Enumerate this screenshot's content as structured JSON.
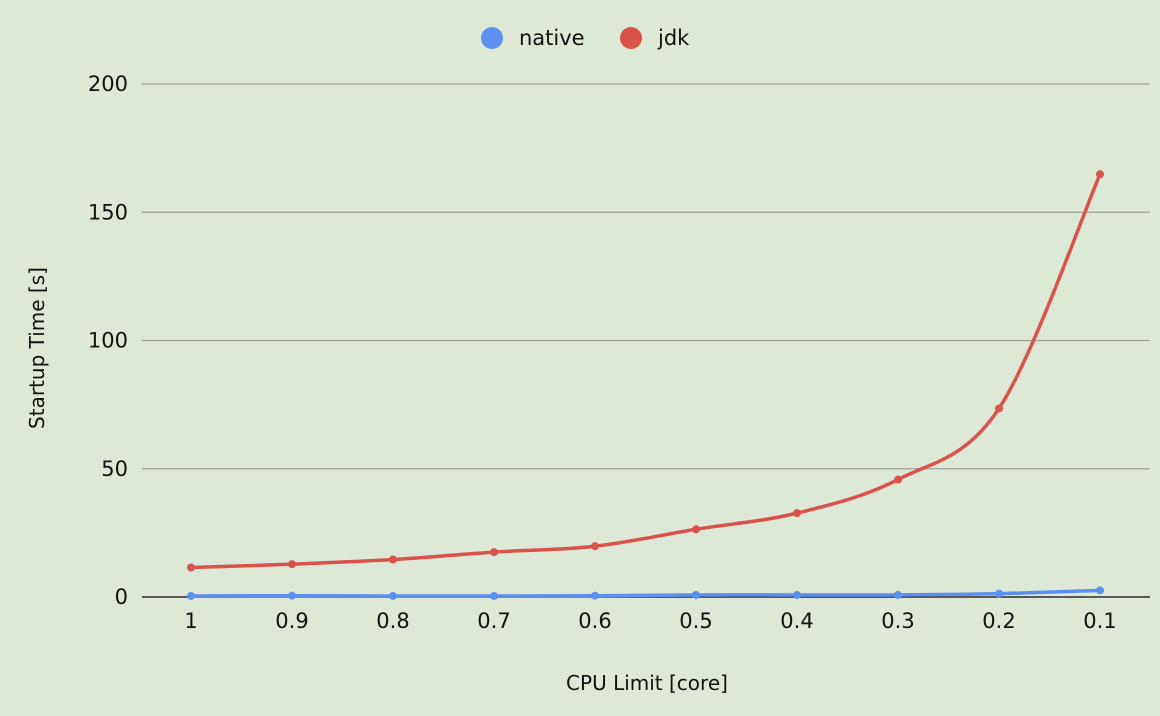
{
  "chart_data": {
    "type": "line",
    "categories": [
      "1",
      "0.9",
      "0.8",
      "0.7",
      "0.6",
      "0.5",
      "0.4",
      "0.3",
      "0.2",
      "0.1"
    ],
    "series": [
      {
        "name": "native",
        "color": "#5b8ff0",
        "values": [
          0.4,
          0.5,
          0.4,
          0.4,
          0.5,
          0.8,
          0.8,
          0.8,
          1.3,
          2.6
        ]
      },
      {
        "name": "jdk",
        "color": "#d9534a",
        "values": [
          11.5,
          12.8,
          14.6,
          17.5,
          19.8,
          26.4,
          32.7,
          45.8,
          73.5,
          164.8
        ]
      }
    ],
    "xlabel": "CPU Limit [core]",
    "ylabel": "Startup Time [s]",
    "ylim": [
      0,
      200
    ],
    "yticks": [
      0,
      50,
      100,
      150,
      200
    ],
    "grid": true,
    "legend_position": "top-center",
    "smooth": true
  }
}
